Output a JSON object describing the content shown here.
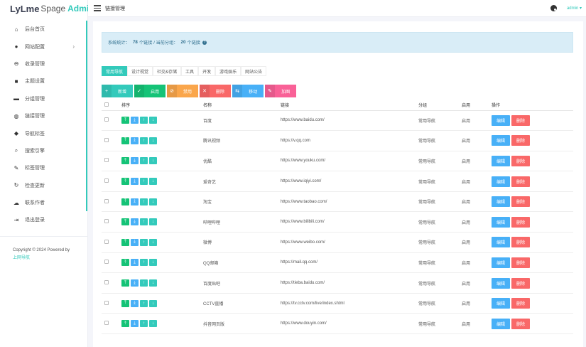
{
  "brand": {
    "part1": "LyLme",
    "part2": "Spage",
    "part3": "Admin"
  },
  "topbar": {
    "title": "链接管理",
    "user": "admin ▾"
  },
  "sidebar": {
    "items": [
      {
        "label": "后台首页",
        "icon": "home-icon",
        "glyph": "⌂"
      },
      {
        "label": "网站配置",
        "icon": "palette-icon",
        "glyph": "●",
        "arrow": "›"
      },
      {
        "label": "收录管理",
        "icon": "link-icon",
        "glyph": "⊖"
      },
      {
        "label": "主题设置",
        "icon": "user-icon",
        "glyph": "■"
      },
      {
        "label": "分组管理",
        "icon": "folder-icon",
        "glyph": "▬"
      },
      {
        "label": "链接管理",
        "icon": "globe-icon",
        "glyph": "◍"
      },
      {
        "label": "导航标签",
        "icon": "cube-icon",
        "glyph": "◆"
      },
      {
        "label": "搜索引擎",
        "icon": "search-icon",
        "glyph": "⌕"
      },
      {
        "label": "标签管理",
        "icon": "wrench-icon",
        "glyph": "✎"
      },
      {
        "label": "检查更新",
        "icon": "refresh-icon",
        "glyph": "↻"
      },
      {
        "label": "联系作者",
        "icon": "chat-icon",
        "glyph": "☁"
      },
      {
        "label": "退出登录",
        "icon": "logout-icon",
        "glyph": "⇥"
      }
    ],
    "copyright": "Copyright © 2024 Powered by",
    "copyright_link": "上网导航"
  },
  "alert": {
    "prefix": "系统统计：",
    "total": "78",
    "total_suffix": "个链接 / 当前分组：",
    "group_count": "20",
    "group_suffix": "个链接",
    "info_icon": "info-icon"
  },
  "tabs": [
    "常用导航",
    "设计视觉",
    "社交&存储",
    "工具",
    "开发",
    "游戏娱乐",
    "网站公告"
  ],
  "actions": [
    {
      "label": "新增",
      "glyph": "+",
      "icon": "plus-icon",
      "cls": "act-add"
    },
    {
      "label": "启用",
      "glyph": "✓",
      "icon": "check-icon",
      "cls": "act-enable"
    },
    {
      "label": "禁用",
      "glyph": "⊘",
      "icon": "ban-icon",
      "cls": "act-disable"
    },
    {
      "label": "删除",
      "glyph": "✕",
      "icon": "close-icon",
      "cls": "act-delete"
    },
    {
      "label": "移动",
      "glyph": "⇆",
      "icon": "move-icon",
      "cls": "act-move"
    },
    {
      "label": "加图",
      "glyph": "✎",
      "icon": "wrench-icon",
      "cls": "act-add-group"
    }
  ],
  "table": {
    "headers": [
      "排序",
      "名称",
      "链接",
      "分组",
      "启用",
      "操作"
    ],
    "op_glyphs": [
      "⤒",
      "⤓",
      "↑",
      "↓"
    ],
    "edit_label": "编辑",
    "delete_label": "删除",
    "rows": [
      {
        "name": "百度",
        "url": "https://www.baidu.com/",
        "group": "常用导航",
        "status": "启用"
      },
      {
        "name": "腾讯视频",
        "url": "https://v.qq.com",
        "group": "常用导航",
        "status": "启用"
      },
      {
        "name": "优酷",
        "url": "https://www.youku.com/",
        "group": "常用导航",
        "status": "启用"
      },
      {
        "name": "爱奇艺",
        "url": "https://www.iqiyi.com/",
        "group": "常用导航",
        "status": "启用"
      },
      {
        "name": "淘宝",
        "url": "https://www.taobao.com/",
        "group": "常用导航",
        "status": "启用"
      },
      {
        "name": "哔哩哔哩",
        "url": "https://www.bilibili.com/",
        "group": "常用导航",
        "status": "启用"
      },
      {
        "name": "微博",
        "url": "https://www.weibo.com/",
        "group": "常用导航",
        "status": "启用"
      },
      {
        "name": "QQ邮箱",
        "url": "https://mail.qq.com/",
        "group": "常用导航",
        "status": "启用"
      },
      {
        "name": "百度贴吧",
        "url": "https://tieba.baidu.com/",
        "group": "常用导航",
        "status": "启用"
      },
      {
        "name": "CCTV直播",
        "url": "https://tv.cctv.com/live/index.shtml",
        "group": "常用导航",
        "status": "启用"
      },
      {
        "name": "抖音网页版",
        "url": "https://www.douyin.com/",
        "group": "常用导航",
        "status": "启用"
      }
    ]
  },
  "colors": {
    "accent": "#33cabb",
    "success": "#15c377",
    "info": "#48b0f7",
    "danger": "#f96868",
    "warning": "#faa64b",
    "pink": "#f96197"
  }
}
